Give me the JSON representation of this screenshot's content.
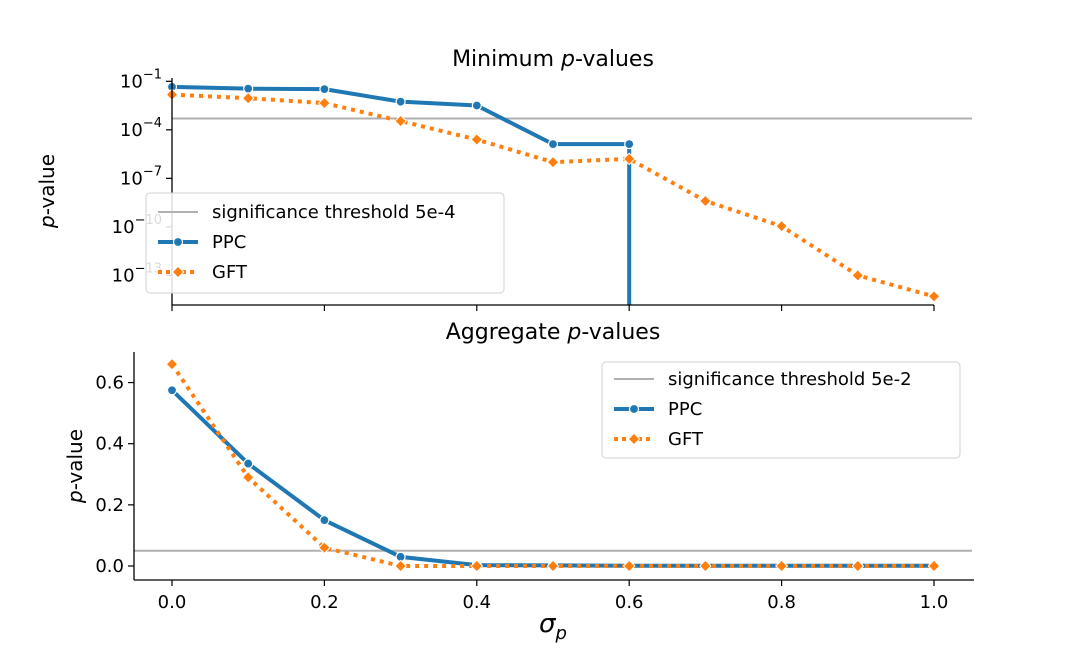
{
  "chart_data": [
    {
      "type": "line",
      "title_prefix": "Minimum ",
      "title_italic": "p",
      "title_suffix": "-values",
      "ylabel_italic": "p",
      "ylabel_suffix": "-value",
      "yscale": "log",
      "ylim": [
        3e-15,
        0.5
      ],
      "yticks": [
        {
          "value": 0.1,
          "base": "10",
          "exp": "−1"
        },
        {
          "value": 0.0001,
          "base": "10",
          "exp": "−4"
        },
        {
          "value": 1e-07,
          "base": "10",
          "exp": "−7"
        },
        {
          "value": 1e-10,
          "base": "10",
          "exp": "−10"
        },
        {
          "value": 1e-13,
          "base": "10",
          "exp": "−13"
        }
      ],
      "xlim": [
        0,
        1
      ],
      "xticks": [
        0,
        0.2,
        0.4,
        0.6,
        0.8,
        1.0
      ],
      "threshold": {
        "value": 0.0005,
        "color": "#b0b0b0"
      },
      "legend": {
        "position": "lower-left",
        "items": [
          "significance threshold 5e-4",
          "PPC",
          "GFT"
        ]
      },
      "series": [
        {
          "name": "PPC",
          "color": "#1f77b4",
          "marker": "circle",
          "style": "solid",
          "x": [
            0,
            0.1,
            0.2,
            0.3,
            0.4,
            0.5,
            0.6
          ],
          "y": [
            0.045,
            0.035,
            0.033,
            0.0055,
            0.0032,
            1.3e-05,
            1.3e-05
          ],
          "drop_to_zero_at_end": true
        },
        {
          "name": "GFT",
          "color": "#ff7f0e",
          "marker": "diamond",
          "style": "dotted",
          "x": [
            0,
            0.1,
            0.2,
            0.3,
            0.4,
            0.5,
            0.6,
            0.7,
            0.8,
            0.9,
            1.0
          ],
          "y": [
            0.015,
            0.009,
            0.0045,
            0.00035,
            2.5e-05,
            1e-06,
            1.6e-06,
            4e-09,
            1.1e-10,
            1e-13,
            5e-15
          ]
        }
      ]
    },
    {
      "type": "line",
      "title_prefix": "Aggregate ",
      "title_italic": "p",
      "title_suffix": "-values",
      "ylabel_italic": "p",
      "ylabel_suffix": "-value",
      "xlabel": "σ",
      "xlabel_sub": "p",
      "ylim": [
        0,
        0.7
      ],
      "yticks": [
        0.0,
        0.2,
        0.4,
        0.6
      ],
      "ytick_labels": [
        "0.0",
        "0.2",
        "0.4",
        "0.6"
      ],
      "xlim": [
        0,
        1
      ],
      "xticks": [
        0,
        0.2,
        0.4,
        0.6,
        0.8,
        1.0
      ],
      "xtick_labels": [
        "0.0",
        "0.2",
        "0.4",
        "0.6",
        "0.8",
        "1.0"
      ],
      "threshold": {
        "value": 0.05,
        "color": "#b0b0b0"
      },
      "legend": {
        "position": "top-right",
        "items": [
          "significance threshold 5e-2",
          "PPC",
          "GFT"
        ]
      },
      "series": [
        {
          "name": "PPC",
          "color": "#1f77b4",
          "marker": "circle",
          "style": "solid",
          "x": [
            0,
            0.1,
            0.2,
            0.3,
            0.4,
            0.5,
            0.6,
            0.7,
            0.8,
            0.9,
            1.0
          ],
          "y": [
            0.575,
            0.335,
            0.15,
            0.03,
            0.003,
            0.002,
            0.001,
            0.001,
            0.001,
            0.001,
            0.001
          ]
        },
        {
          "name": "GFT",
          "color": "#ff7f0e",
          "marker": "diamond",
          "style": "dotted",
          "x": [
            0,
            0.1,
            0.2,
            0.3,
            0.4,
            0.5,
            0.6,
            0.7,
            0.8,
            0.9,
            1.0
          ],
          "y": [
            0.66,
            0.29,
            0.06,
            0.0,
            0.0,
            0.0,
            0.0,
            0.0,
            0.0,
            0.0,
            0.0
          ]
        }
      ]
    }
  ]
}
